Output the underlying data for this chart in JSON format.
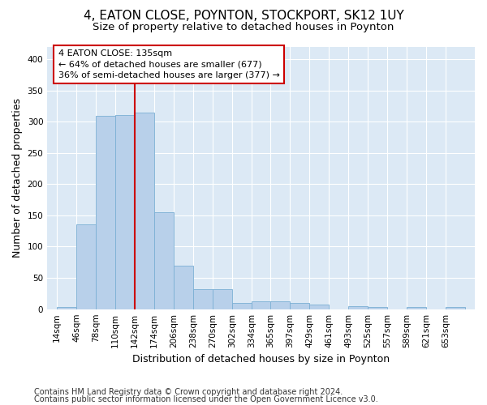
{
  "title": "4, EATON CLOSE, POYNTON, STOCKPORT, SK12 1UY",
  "subtitle": "Size of property relative to detached houses in Poynton",
  "xlabel": "Distribution of detached houses by size in Poynton",
  "ylabel": "Number of detached properties",
  "footer1": "Contains HM Land Registry data © Crown copyright and database right 2024.",
  "footer2": "Contains public sector information licensed under the Open Government Licence v3.0.",
  "bin_labels": [
    "14sqm",
    "46sqm",
    "78sqm",
    "110sqm",
    "142sqm",
    "174sqm",
    "206sqm",
    "238sqm",
    "270sqm",
    "302sqm",
    "334sqm",
    "365sqm",
    "397sqm",
    "429sqm",
    "461sqm",
    "493sqm",
    "525sqm",
    "557sqm",
    "589sqm",
    "621sqm",
    "653sqm"
  ],
  "bar_left_edges": [
    14,
    46,
    78,
    110,
    142,
    174,
    206,
    238,
    270,
    302,
    334,
    365,
    397,
    429,
    461,
    493,
    525,
    557,
    589,
    621,
    653
  ],
  "bar_heights": [
    4,
    136,
    309,
    311,
    315,
    155,
    70,
    32,
    32,
    10,
    12,
    12,
    10,
    8,
    0,
    5,
    3,
    0,
    3,
    0,
    3
  ],
  "bar_color": "#b8d0ea",
  "bar_edge_color": "#7bafd4",
  "vline_x": 142,
  "vline_color": "#cc0000",
  "annotation_line1": "4 EATON CLOSE: 135sqm",
  "annotation_line2": "← 64% of detached houses are smaller (677)",
  "annotation_line3": "36% of semi-detached houses are larger (377) →",
  "annotation_box_color": "#ffffff",
  "annotation_box_edge": "#cc0000",
  "ylim": [
    0,
    420
  ],
  "yticks": [
    0,
    50,
    100,
    150,
    200,
    250,
    300,
    350,
    400
  ],
  "bg_color": "#dce9f5",
  "grid_color": "#ffffff",
  "title_fontsize": 11,
  "subtitle_fontsize": 9.5,
  "ylabel_fontsize": 9,
  "xlabel_fontsize": 9,
  "tick_fontsize": 7.5,
  "annotation_fontsize": 8,
  "footer_fontsize": 7
}
